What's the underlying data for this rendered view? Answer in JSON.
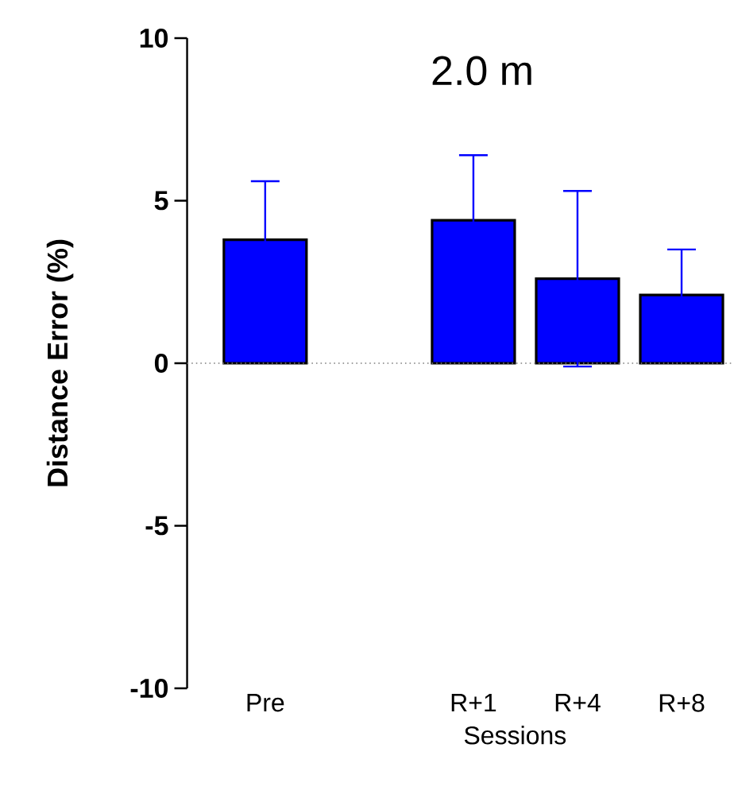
{
  "chart_data": {
    "type": "bar",
    "title": "2.0 m",
    "xlabel": "Sessions",
    "ylabel": "Distance Error (%)",
    "categories": [
      "Pre",
      null,
      "R+1",
      "R+4",
      "R+8"
    ],
    "values": [
      3.8,
      null,
      4.4,
      2.6,
      2.1
    ],
    "errors": [
      1.8,
      null,
      2.0,
      2.7,
      1.4
    ],
    "color": "#0000ff",
    "ylim": [
      -10,
      10
    ],
    "yticks": [
      -10,
      -5,
      0,
      5,
      10
    ],
    "ref_lines": [
      {
        "axis": "y",
        "value": 0,
        "line_style": "dotted",
        "color": "#808080"
      }
    ]
  }
}
